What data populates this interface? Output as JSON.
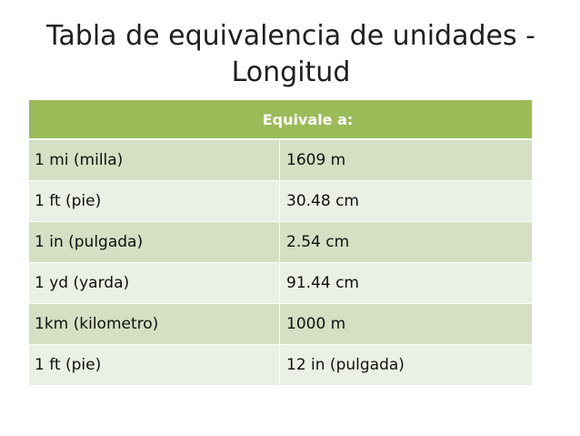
{
  "slide": {
    "title": "Tabla de equivalencia de unidades -\nLongitud"
  },
  "table": {
    "header": "Equivale a:",
    "rows": [
      {
        "unit": "1 mi (milla)",
        "equivalent": "1609 m"
      },
      {
        "unit": "1 ft (pie)",
        "equivalent": "30.48 cm"
      },
      {
        "unit": "1 in (pulgada)",
        "equivalent": "2.54 cm"
      },
      {
        "unit": "1 yd (yarda)",
        "equivalent": "91.44 cm"
      },
      {
        "unit": "1km (kilometro)",
        "equivalent": "1000 m"
      },
      {
        "unit": "1 ft (pie)",
        "equivalent": "12 in (pulgada)"
      }
    ]
  },
  "colors": {
    "header": "#9bbb59",
    "row_odd": "#d4dfc3",
    "row_even": "#ebf0e4"
  }
}
